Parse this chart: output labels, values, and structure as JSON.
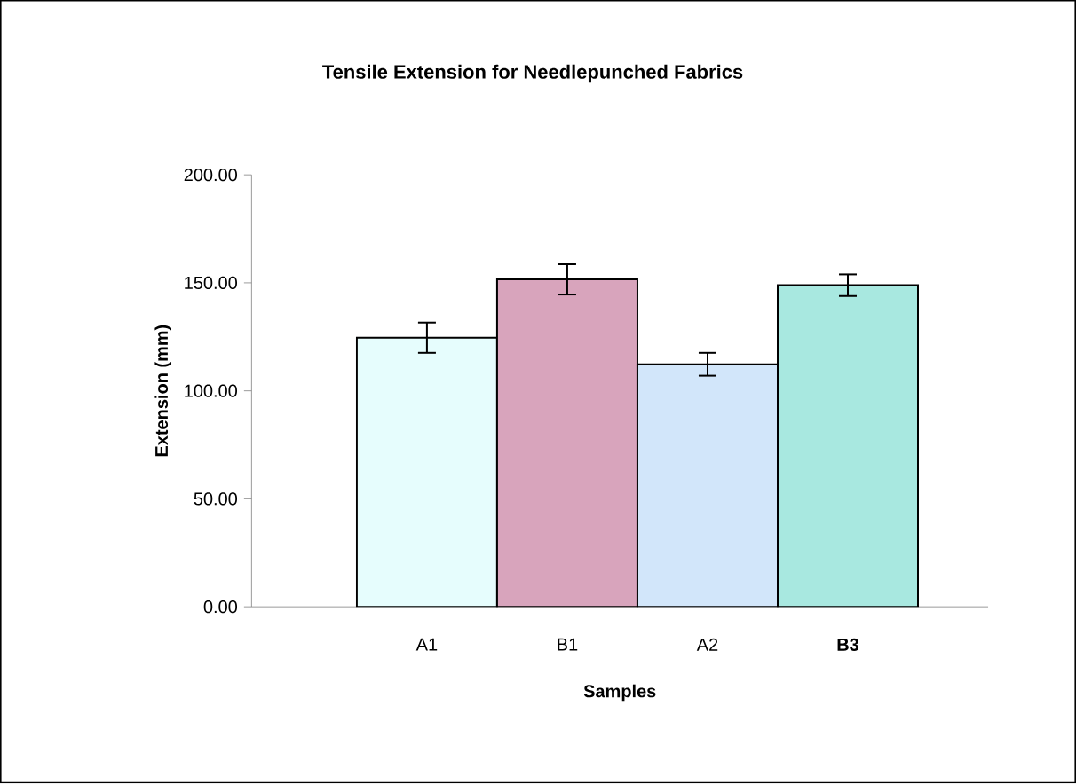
{
  "chart_data": {
    "type": "bar",
    "title": "Tensile Extension for Needlepunched Fabrics",
    "xlabel": "Samples",
    "ylabel": "Extension (mm)",
    "categories": [
      "A1",
      "B1",
      "A2",
      "**B3**"
    ],
    "values": [
      124.6,
      151.6,
      112.3,
      148.9
    ],
    "errors": [
      7,
      7,
      5.3,
      5
    ],
    "colors": [
      "#e6fdfd",
      "#d8a4bc",
      "#d2e6fa",
      "#a8e8e0"
    ],
    "ylim": [
      0,
      200
    ],
    "yticks": [
      {
        "value": 0,
        "label": "0.00"
      },
      {
        "value": 50,
        "label": "50.00"
      },
      {
        "value": 100,
        "label": "100.00"
      },
      {
        "value": 150,
        "label": "150.00"
      },
      {
        "value": 200,
        "label": "200.00"
      }
    ]
  }
}
